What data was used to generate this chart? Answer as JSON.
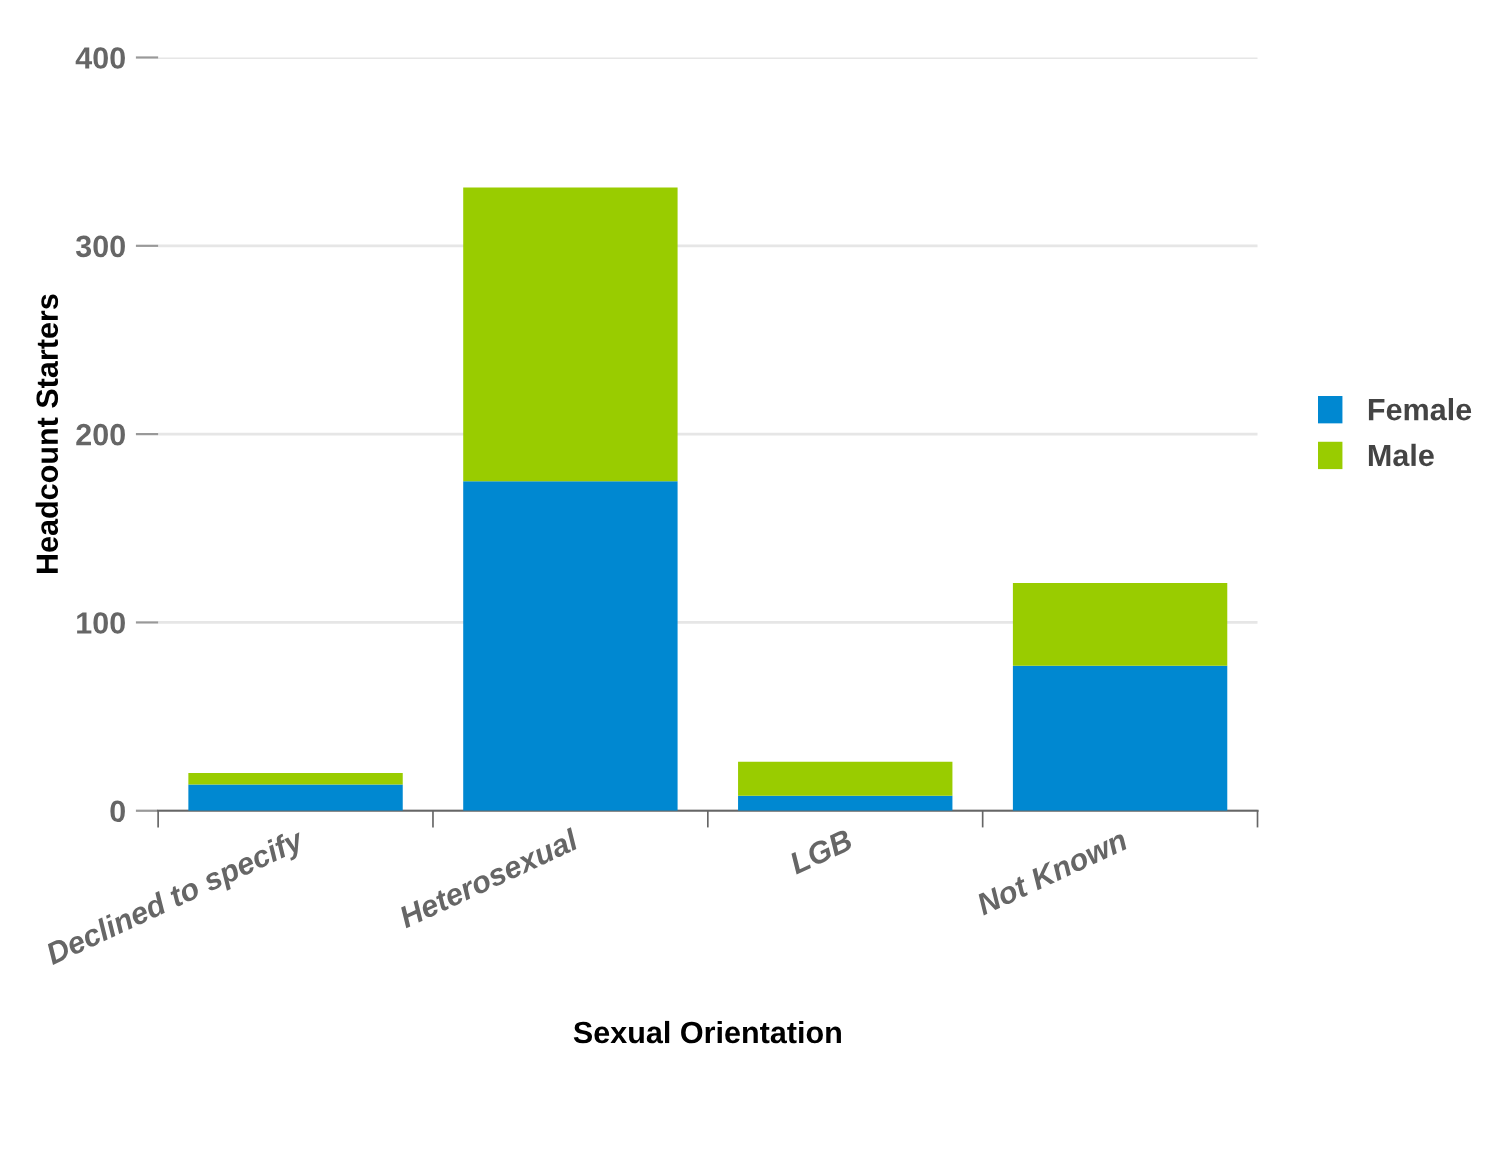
{
  "chart_data": {
    "type": "bar",
    "stacked": true,
    "xlabel": "Sexual Orientation",
    "ylabel": "Headcount Starters",
    "categories": [
      "Declined to specify",
      "Heterosexual",
      "LGB",
      "Not Known"
    ],
    "series": [
      {
        "name": "Female",
        "color": "#0088d1",
        "values": [
          14,
          175,
          8,
          77
        ]
      },
      {
        "name": "Male",
        "color": "#99cc00",
        "values": [
          6,
          156,
          18,
          44
        ]
      }
    ],
    "ylim": [
      0,
      400
    ],
    "yticks": [
      0,
      100,
      200,
      300,
      400
    ],
    "grid": "y",
    "legend": "right"
  }
}
